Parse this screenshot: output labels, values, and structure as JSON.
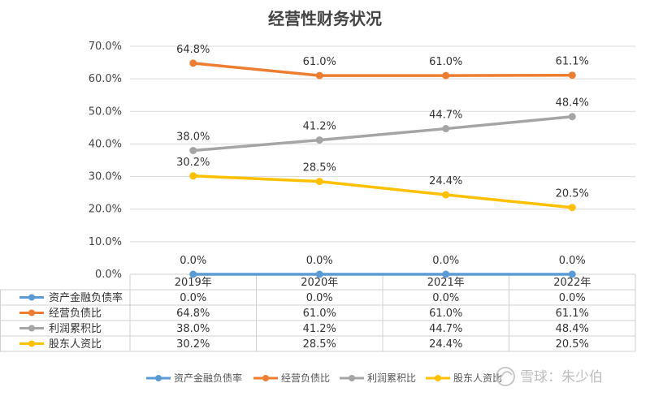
{
  "chart_data": {
    "type": "line",
    "title": "经营性财务状况",
    "categories": [
      "2019年",
      "2020年",
      "2021年",
      "2022年"
    ],
    "ylim": [
      0,
      70
    ],
    "y_ticks": [
      "0.0%",
      "10.0%",
      "20.0%",
      "30.0%",
      "40.0%",
      "50.0%",
      "60.0%",
      "70.0%"
    ],
    "grid": true,
    "legend_position": "bottom",
    "data_table": true,
    "series": [
      {
        "name": "资产金融负债率",
        "values": [
          0.0,
          0.0,
          0.0,
          0.0
        ],
        "labels": [
          "0.0%",
          "0.0%",
          "0.0%",
          "0.0%"
        ],
        "color": "#5B9BD5"
      },
      {
        "name": "经营负债比",
        "values": [
          64.8,
          61.0,
          61.0,
          61.1
        ],
        "labels": [
          "64.8%",
          "61.0%",
          "61.0%",
          "61.1%"
        ],
        "color": "#ED7D31"
      },
      {
        "name": "利润累积比",
        "values": [
          38.0,
          41.2,
          44.7,
          48.4
        ],
        "labels": [
          "38.0%",
          "41.2%",
          "44.7%",
          "48.4%"
        ],
        "color": "#A5A5A5"
      },
      {
        "name": "股东人资比",
        "values": [
          30.2,
          28.5,
          24.4,
          20.5
        ],
        "labels": [
          "30.2%",
          "28.5%",
          "24.4%",
          "20.5%"
        ],
        "color": "#FFC000"
      }
    ]
  },
  "watermark": "雪球：朱少伯"
}
